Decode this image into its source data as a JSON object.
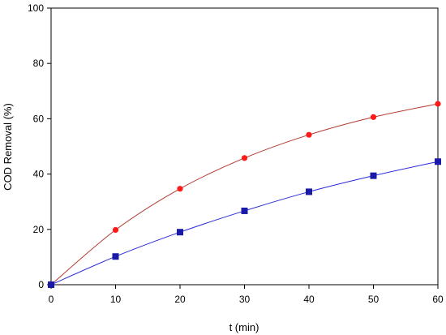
{
  "chart_data": {
    "type": "scatter",
    "title": "",
    "xlabel": "t (min)",
    "ylabel": "COD Removal (%)",
    "xlim": [
      0,
      60
    ],
    "ylim": [
      0,
      100
    ],
    "xticks": [
      0,
      10,
      20,
      30,
      40,
      50,
      60
    ],
    "yticks": [
      0,
      20,
      40,
      60,
      80,
      100
    ],
    "grid": false,
    "legend": "none",
    "series": [
      {
        "marker": "circle",
        "marker_color": "#ff1a1a",
        "line_color": "#b03a2e",
        "fit_line": true,
        "x": [
          0,
          10,
          20,
          30,
          40,
          50,
          60
        ],
        "y": [
          0,
          19.8,
          34.7,
          45.8,
          54.2,
          60.6,
          65.4
        ]
      },
      {
        "marker": "square",
        "marker_color": "#1a1aa8",
        "line_color": "#2a2ad6",
        "fit_line": true,
        "x": [
          0,
          10,
          20,
          30,
          40,
          50,
          60
        ],
        "y": [
          0,
          10.2,
          19.0,
          26.7,
          33.6,
          39.4,
          44.5
        ]
      }
    ]
  }
}
